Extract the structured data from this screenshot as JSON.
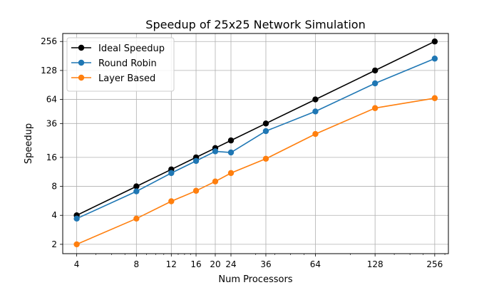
{
  "chart_data": {
    "type": "line",
    "title": "Speedup of 25x25 Network Simulation",
    "xlabel": "Num Processors",
    "ylabel": "Speedup",
    "xscale": "log2",
    "yscale": "log2",
    "xlim": [
      3.4,
      300
    ],
    "ylim": [
      1.6,
      310
    ],
    "xticks": [
      4,
      8,
      12,
      16,
      20,
      24,
      36,
      64,
      128,
      256
    ],
    "yticks": [
      2,
      4,
      8,
      16,
      36,
      64,
      128,
      256
    ],
    "grid": true,
    "legend_position": "top-left",
    "series": [
      {
        "name": "Ideal Speedup",
        "color": "#000000",
        "x": [
          4,
          8,
          12,
          16,
          20,
          24,
          36,
          64,
          128,
          256
        ],
        "y": [
          4,
          8,
          12,
          16,
          20,
          24,
          36,
          64,
          128,
          256
        ]
      },
      {
        "name": "Round Robin",
        "color": "#1f77b4",
        "x": [
          4,
          8,
          12,
          16,
          20,
          24,
          36,
          64,
          128,
          256
        ],
        "y": [
          3.7,
          7.1,
          11.0,
          14.7,
          18.5,
          18.0,
          30.0,
          48.0,
          94.0,
          170.0
        ]
      },
      {
        "name": "Layer Based",
        "color": "#ff7f0e",
        "x": [
          4,
          8,
          12,
          16,
          20,
          24,
          36,
          64,
          128,
          256
        ],
        "y": [
          2.0,
          3.7,
          5.6,
          7.2,
          9.0,
          11.0,
          15.5,
          28.0,
          52.0,
          66.0
        ]
      }
    ]
  }
}
